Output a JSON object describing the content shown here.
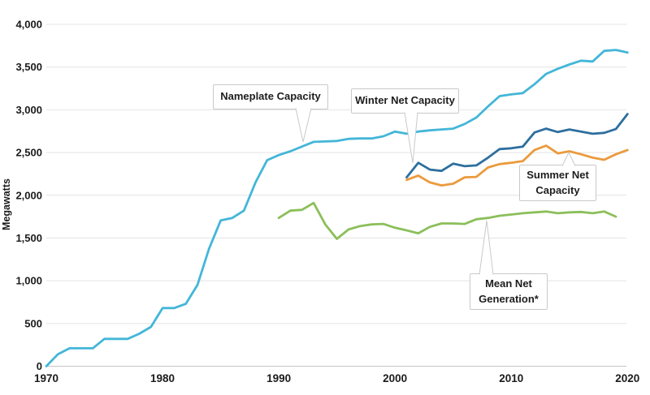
{
  "chart_data": {
    "type": "line",
    "title": "",
    "xlabel": "",
    "ylabel": "Megawatts",
    "xlim": [
      1970,
      2020
    ],
    "ylim": [
      0,
      4000
    ],
    "grid": "horizontal",
    "legend_position": "none",
    "x_tick_values": [
      1970,
      1980,
      1990,
      2000,
      2010,
      2020
    ],
    "x_tick_labels": [
      "1970",
      "1980",
      "1990",
      "2000",
      "2010",
      "2020"
    ],
    "y_tick_values": [
      0,
      500,
      1000,
      1500,
      2000,
      2500,
      3000,
      3500,
      4000
    ],
    "y_tick_labels": [
      "0",
      "500",
      "1,000",
      "1,500",
      "2,000",
      "2,500",
      "3,000",
      "3,500",
      "4,000"
    ],
    "colors": {
      "background": "#ffffff",
      "grid": "#e4e4e4",
      "axis_line": "#c6c6c6",
      "text": "#1b1b1b",
      "callout_border": "#c9c9c9"
    },
    "series": [
      {
        "name": "Nameplate Capacity",
        "color": "#43b6d8",
        "start_year": 1970,
        "values": [
          0,
          140,
          210,
          210,
          210,
          320,
          320,
          320,
          380,
          460,
          680,
          680,
          730,
          950,
          1375,
          1705,
          1735,
          1820,
          2150,
          2410,
          2470,
          2515,
          2570,
          2625,
          2630,
          2635,
          2660,
          2665,
          2665,
          2690,
          2745,
          2720,
          2745,
          2760,
          2770,
          2780,
          2835,
          2910,
          3040,
          3160,
          3180,
          3195,
          3300,
          3420,
          3480,
          3530,
          3575,
          3565,
          3690,
          3700,
          3670
        ]
      },
      {
        "name": "Winter Net Capacity",
        "color": "#2d6f9e",
        "start_year": 2001,
        "values": [
          2210,
          2380,
          2300,
          2285,
          2370,
          2340,
          2350,
          2440,
          2540,
          2550,
          2570,
          2735,
          2780,
          2740,
          2770,
          2745,
          2720,
          2730,
          2775,
          2950
        ]
      },
      {
        "name": "Summer Net Capacity",
        "color": "#eb9a3d",
        "start_year": 2001,
        "values": [
          2180,
          2230,
          2150,
          2115,
          2135,
          2210,
          2215,
          2325,
          2365,
          2380,
          2400,
          2530,
          2580,
          2490,
          2515,
          2480,
          2440,
          2415,
          2480,
          2530
        ]
      },
      {
        "name": "Mean Net Generation*",
        "color": "#8bbf5a",
        "start_year": 1990,
        "values": [
          1735,
          1820,
          1830,
          1910,
          1660,
          1490,
          1600,
          1640,
          1660,
          1665,
          1620,
          1590,
          1555,
          1630,
          1670,
          1670,
          1665,
          1720,
          1735,
          1760,
          1775,
          1790,
          1800,
          1810,
          1790,
          1800,
          1805,
          1790,
          1810,
          1750
        ]
      }
    ],
    "annotations": [
      {
        "id": "nameplate-capacity",
        "lines": [
          "Nameplate Capacity"
        ],
        "box": {
          "x": 262,
          "y": 104,
          "w": 142,
          "h": 31
        },
        "pointer": {
          "side": "bottom",
          "base": [
            364,
            383
          ],
          "tip": [
            373,
            175
          ]
        }
      },
      {
        "id": "winter-net-capacity",
        "lines": [
          "Winter Net Capacity"
        ],
        "box": {
          "x": 432,
          "y": 109,
          "w": 133,
          "h": 31
        },
        "pointer": {
          "side": "bottom",
          "base": [
            498,
            514
          ],
          "tip": [
            508,
            201
          ]
        }
      },
      {
        "id": "summer-net-capacity",
        "lines": [
          "Summer Net",
          "Capacity"
        ],
        "box": {
          "x": 639,
          "y": 203,
          "w": 95,
          "h": 45
        },
        "pointer": {
          "side": "top",
          "base": [
            692,
            708
          ],
          "tip": [
            700,
            188
          ]
        }
      },
      {
        "id": "mean-net-generation",
        "lines": [
          "Mean Net",
          "Generation*"
        ],
        "box": {
          "x": 578,
          "y": 337,
          "w": 96,
          "h": 45
        },
        "pointer": {
          "side": "top",
          "base": [
            590,
            607
          ],
          "tip": [
            599,
            272
          ]
        }
      }
    ]
  }
}
